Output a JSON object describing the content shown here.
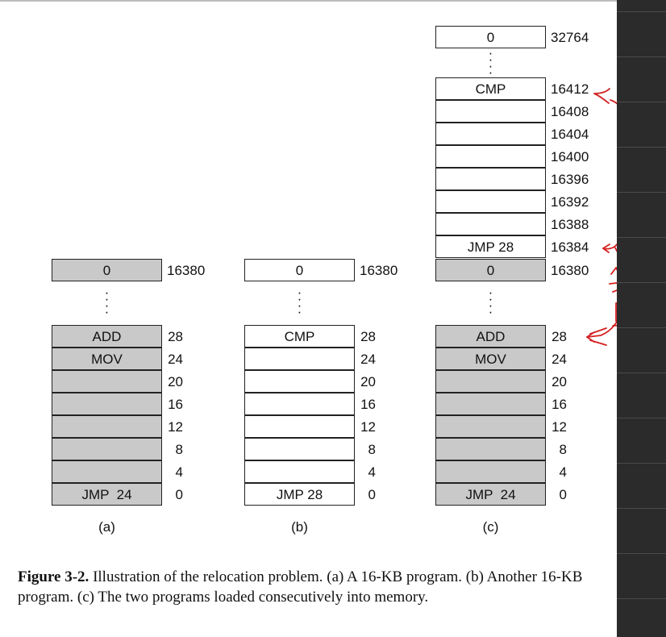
{
  "diagram": {
    "columns": [
      {
        "id": "a",
        "label": "(a)",
        "top": {
          "text": "0",
          "addr": "16380",
          "shade": "gray"
        },
        "cells": [
          {
            "text": "ADD",
            "addr": "28",
            "shade": "gray"
          },
          {
            "text": "MOV",
            "addr": "24",
            "shade": "gray"
          },
          {
            "text": "",
            "addr": "20",
            "shade": "gray"
          },
          {
            "text": "",
            "addr": "16",
            "shade": "gray"
          },
          {
            "text": "",
            "addr": "12",
            "shade": "gray"
          },
          {
            "text": "",
            "addr": "8",
            "shade": "gray"
          },
          {
            "text": "",
            "addr": "4",
            "shade": "gray"
          },
          {
            "text": "JMP  24",
            "addr": "0",
            "shade": "gray"
          }
        ]
      },
      {
        "id": "b",
        "label": "(b)",
        "top": {
          "text": "0",
          "addr": "16380",
          "shade": "white"
        },
        "cells": [
          {
            "text": "CMP",
            "addr": "28",
            "shade": "white"
          },
          {
            "text": "",
            "addr": "24",
            "shade": "white"
          },
          {
            "text": "",
            "addr": "20",
            "shade": "white"
          },
          {
            "text": "",
            "addr": "16",
            "shade": "white"
          },
          {
            "text": "",
            "addr": "12",
            "shade": "white"
          },
          {
            "text": "",
            "addr": "8",
            "shade": "white"
          },
          {
            "text": "",
            "addr": "4",
            "shade": "white"
          },
          {
            "text": "JMP 28",
            "addr": "0",
            "shade": "white"
          }
        ]
      },
      {
        "id": "c",
        "label": "(c)",
        "top": {
          "text": "0",
          "addr": "32764",
          "shade": "white"
        },
        "upper_cells": [
          {
            "text": "CMP",
            "addr": "16412",
            "shade": "white"
          },
          {
            "text": "",
            "addr": "16408",
            "shade": "white"
          },
          {
            "text": "",
            "addr": "16404",
            "shade": "white"
          },
          {
            "text": "",
            "addr": "16400",
            "shade": "white"
          },
          {
            "text": "",
            "addr": "16396",
            "shade": "white"
          },
          {
            "text": "",
            "addr": "16392",
            "shade": "white"
          },
          {
            "text": "",
            "addr": "16388",
            "shade": "white"
          },
          {
            "text": "JMP 28",
            "addr": "16384",
            "shade": "white"
          }
        ],
        "middle": {
          "text": "0",
          "addr": "16380",
          "shade": "gray"
        },
        "cells": [
          {
            "text": "ADD",
            "addr": "28",
            "shade": "gray"
          },
          {
            "text": "MOV",
            "addr": "24",
            "shade": "gray"
          },
          {
            "text": "",
            "addr": "20",
            "shade": "gray"
          },
          {
            "text": "",
            "addr": "16",
            "shade": "gray"
          },
          {
            "text": "",
            "addr": "12",
            "shade": "gray"
          },
          {
            "text": "",
            "addr": "8",
            "shade": "gray"
          },
          {
            "text": "",
            "addr": "4",
            "shade": "gray"
          },
          {
            "text": "JMP  24",
            "addr": "0",
            "shade": "gray"
          }
        ]
      }
    ],
    "annotation_color": "#d42020"
  },
  "caption": {
    "figure_label": "Figure 3-2.",
    "text": "Illustration of the relocation problem. (a) A 16-KB program. (b) Another 16-KB program. (c) The two programs loaded consecutively into memory."
  }
}
